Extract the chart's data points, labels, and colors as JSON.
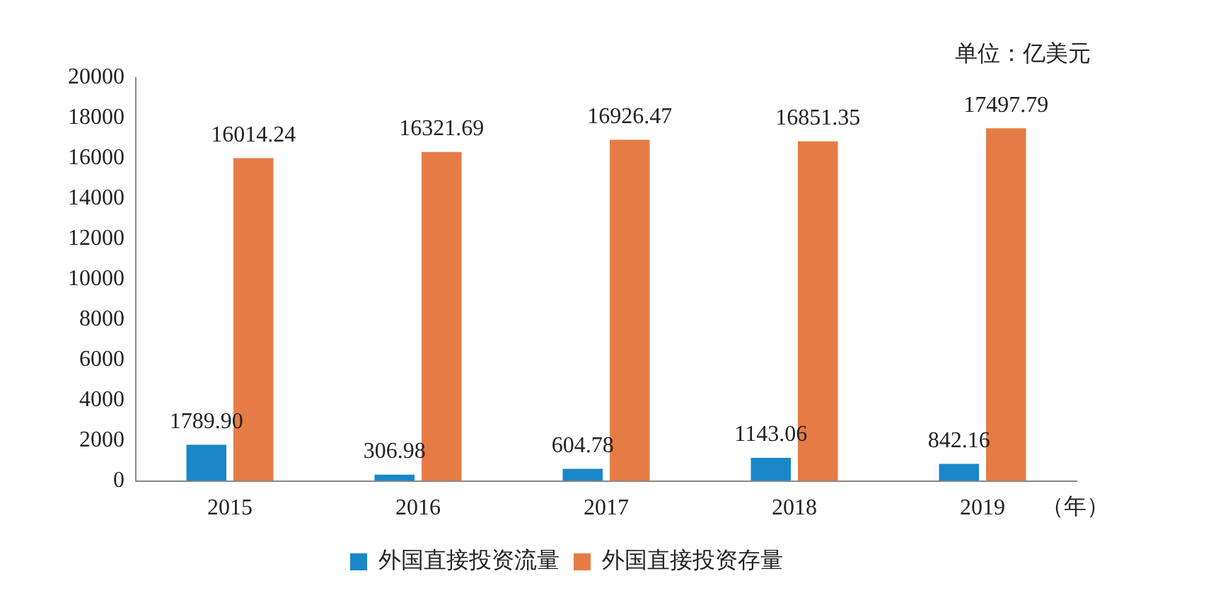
{
  "chart_data": {
    "type": "bar",
    "categories": [
      "2015",
      "2016",
      "2017",
      "2018",
      "2019"
    ],
    "xlabel": "（年）",
    "series": [
      {
        "name": "外国直接投资流量",
        "color": "#1a87c8",
        "values": [
          1789.9,
          306.98,
          604.78,
          1143.06,
          842.16
        ],
        "value_labels": [
          "1789.90",
          "306.98",
          "604.78",
          "1143.06",
          "842.16"
        ]
      },
      {
        "name": "外国直接投资存量",
        "color": "#e57c45",
        "values": [
          16014.24,
          16321.69,
          16926.47,
          16851.35,
          17497.79
        ],
        "value_labels": [
          "16014.24",
          "16321.69",
          "16926.47",
          "16851.35",
          "17497.79"
        ]
      }
    ],
    "ylim": [
      0,
      20000
    ],
    "yticks": [
      0,
      2000,
      4000,
      6000,
      8000,
      10000,
      12000,
      14000,
      16000,
      18000,
      20000
    ],
    "grid": false,
    "legend": "bottom",
    "annotations": [
      "单位：亿美元"
    ]
  }
}
